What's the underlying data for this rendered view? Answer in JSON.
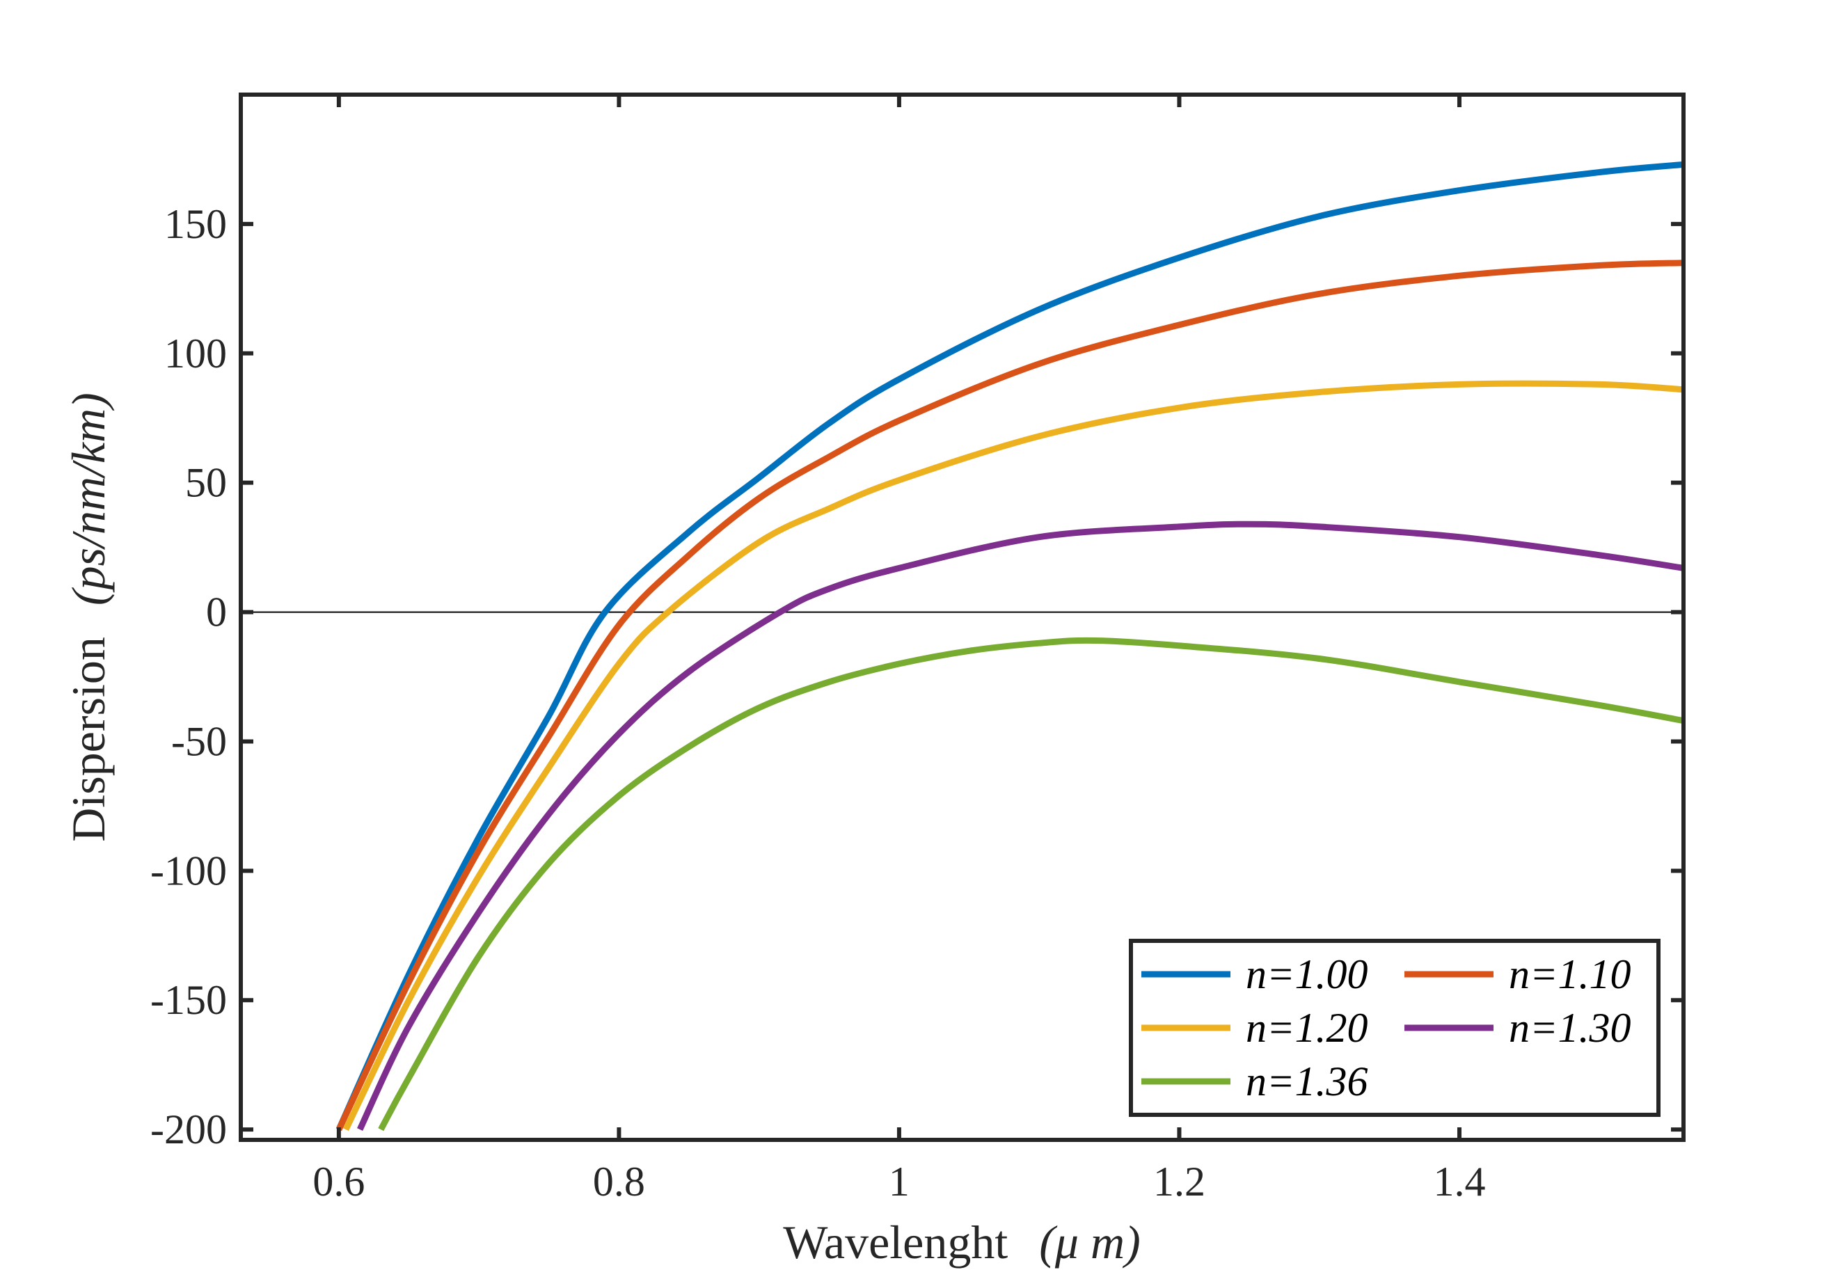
{
  "chart_data": {
    "type": "line",
    "title": "",
    "xlabel": "Wavelenght",
    "xlabel_unit": "(μ m)",
    "ylabel": "Dispersion",
    "ylabel_unit": "(ps/nm/km)",
    "xlim": [
      0.53,
      1.56
    ],
    "ylim": [
      -204,
      200
    ],
    "xticks": [
      0.6,
      0.8,
      1.0,
      1.2,
      1.4
    ],
    "xtick_labels": [
      "0.6",
      "0.8",
      "1",
      "1.2",
      "1.4"
    ],
    "yticks": [
      -200,
      -150,
      -100,
      -50,
      0,
      50,
      100,
      150
    ],
    "ytick_labels": [
      "-200",
      "-150",
      "-100",
      "-50",
      "0",
      "50",
      "100",
      "150"
    ],
    "grid": false,
    "legend_position": "bottom-right",
    "reference_line": {
      "y": 0,
      "color": "#000000"
    },
    "series": [
      {
        "name": "n=1.00",
        "color": "#0072BD",
        "x": [
          0.6,
          0.65,
          0.7,
          0.75,
          0.79,
          0.85,
          0.9,
          0.95,
          1.0,
          1.1,
          1.2,
          1.3,
          1.4,
          1.5,
          1.56
        ],
        "y": [
          -200,
          -140,
          -87,
          -40,
          0,
          31,
          52,
          73,
          90,
          117,
          137,
          153,
          163,
          170,
          173
        ]
      },
      {
        "name": "n=1.10",
        "color": "#D95319",
        "x": [
          0.6,
          0.65,
          0.7,
          0.75,
          0.8,
          0.85,
          0.9,
          0.95,
          1.0,
          1.1,
          1.2,
          1.3,
          1.4,
          1.5,
          1.56
        ],
        "y": [
          -200,
          -143,
          -92,
          -48,
          -5,
          22,
          44,
          60,
          74,
          96,
          111,
          123,
          130,
          134,
          135
        ]
      },
      {
        "name": "n=1.20",
        "color": "#EDB120",
        "x": [
          0.605,
          0.65,
          0.7,
          0.75,
          0.8,
          0.835,
          0.9,
          0.95,
          1.0,
          1.1,
          1.2,
          1.3,
          1.4,
          1.5,
          1.56
        ],
        "y": [
          -200,
          -150,
          -102,
          -60,
          -20,
          0,
          27,
          40,
          51,
          68,
          79,
          85,
          88,
          88,
          86
        ]
      },
      {
        "name": "n=1.30",
        "color": "#7E2F8E",
        "x": [
          0.615,
          0.65,
          0.7,
          0.75,
          0.8,
          0.85,
          0.915,
          0.95,
          1.0,
          1.1,
          1.2,
          1.25,
          1.3,
          1.4,
          1.5,
          1.56
        ],
        "y": [
          -200,
          -160,
          -116,
          -78,
          -47,
          -23,
          0,
          9,
          17,
          29,
          33,
          34,
          33,
          29,
          22,
          17
        ]
      },
      {
        "name": "n=1.36",
        "color": "#77AC30",
        "x": [
          0.63,
          0.65,
          0.7,
          0.75,
          0.8,
          0.85,
          0.9,
          0.95,
          1.0,
          1.05,
          1.1,
          1.14,
          1.2,
          1.3,
          1.4,
          1.5,
          1.56
        ],
        "y": [
          -200,
          -180,
          -133,
          -97,
          -71,
          -52,
          -37,
          -27,
          -20,
          -15,
          -12,
          -11,
          -13,
          -18,
          -27,
          -36,
          -42
        ]
      }
    ]
  }
}
